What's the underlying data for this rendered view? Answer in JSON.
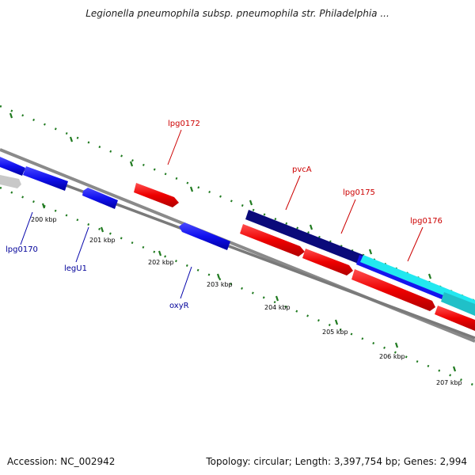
{
  "title": "Legionella pneumophila subsp. pneumophila str. Philadelphia ...",
  "footer": {
    "accession": "Accession: NC_002942",
    "summary": "Topology: circular; Length: 3,397,754 bp; Genes: 2,994"
  },
  "colors": {
    "backbone": "#8a8a8a",
    "ticks": "#1f7a1f",
    "red": "#ff0000",
    "blue": "#1010ee",
    "navy": "#0a0a7a",
    "cyan": "#22e8f0",
    "teal": "#20c0c8",
    "gray": "#c8c8c8",
    "label_red": "#cc0000",
    "label_blue": "#000099"
  },
  "kbp_labels": [
    "200 kbp",
    "201 kbp",
    "202 kbp",
    "203 kbp",
    "204 kbp",
    "205 kbp",
    "206 kbp",
    "207 kbp"
  ],
  "gene_labels": {
    "lpg0172": "lpg0172",
    "pvcA": "pvcA",
    "lpg0175": "lpg0175",
    "lpg0176": "lpg0176",
    "lpg0170": "lpg0170",
    "legU1": "legU1",
    "oxyR": "oxyR"
  }
}
